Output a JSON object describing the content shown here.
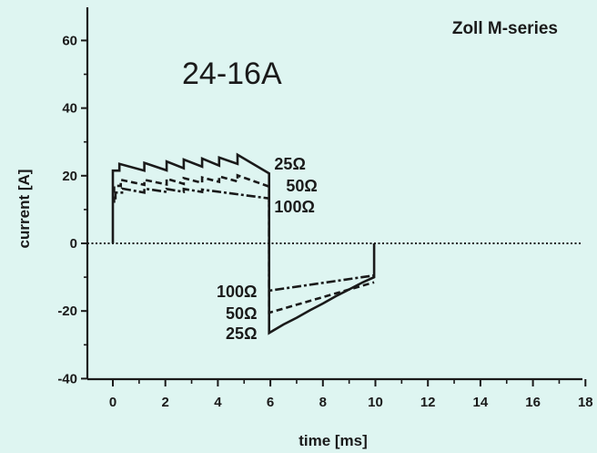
{
  "chart_data": {
    "type": "line",
    "title": "Zoll M-series",
    "subtitle": "24-16A",
    "xlabel": "time [ms]",
    "ylabel": "current [A]",
    "xlim": [
      -1,
      18
    ],
    "ylim": [
      -40,
      70
    ],
    "x_ticks": [
      0,
      2,
      4,
      6,
      8,
      10,
      12,
      14,
      16,
      18
    ],
    "y_ticks": [
      -40,
      -20,
      0,
      20,
      40,
      60
    ],
    "grid": false,
    "zero_line": {
      "y": 0,
      "style": "dotted"
    },
    "series": [
      {
        "name": "25Ω",
        "style": "solid",
        "points": [
          [
            0,
            0
          ],
          [
            0,
            21.5
          ],
          [
            0.25,
            21.5
          ],
          [
            0.25,
            23.5
          ],
          [
            1.2,
            21.5
          ],
          [
            1.2,
            23.8
          ],
          [
            2.05,
            21.6
          ],
          [
            2.05,
            24.2
          ],
          [
            2.7,
            22.2
          ],
          [
            2.7,
            24.8
          ],
          [
            3.4,
            22.7
          ],
          [
            3.4,
            25.1
          ],
          [
            4.05,
            23
          ],
          [
            4.05,
            25.4
          ],
          [
            4.75,
            23.5
          ],
          [
            4.75,
            26.2
          ],
          [
            5.95,
            20.7
          ],
          [
            5.95,
            -26.5
          ],
          [
            6.5,
            -24
          ],
          [
            7.0,
            -22
          ],
          [
            7.5,
            -19.8
          ],
          [
            8.0,
            -17.8
          ],
          [
            8.5,
            -15.6
          ],
          [
            9.0,
            -13.6
          ],
          [
            9.5,
            -11.6
          ],
          [
            9.95,
            -10
          ],
          [
            9.95,
            0
          ]
        ]
      },
      {
        "name": "50Ω",
        "style": "dashed",
        "points": [
          [
            0.05,
            12
          ],
          [
            0.05,
            17
          ],
          [
            0.3,
            17
          ],
          [
            0.3,
            18.8
          ],
          [
            1.2,
            17.3
          ],
          [
            1.2,
            18.8
          ],
          [
            2.05,
            17.4
          ],
          [
            2.05,
            19.1
          ],
          [
            2.7,
            17.6
          ],
          [
            2.7,
            19.3
          ],
          [
            3.4,
            17.9
          ],
          [
            3.4,
            19.5
          ],
          [
            4.05,
            18.2
          ],
          [
            4.05,
            19.8
          ],
          [
            4.75,
            18.3
          ],
          [
            4.75,
            20.1
          ],
          [
            5.95,
            16.8
          ],
          [
            5.95,
            -20.5
          ],
          [
            9.95,
            -11.5
          ]
        ]
      },
      {
        "name": "100Ω",
        "style": "dash-dot",
        "points": [
          [
            0.1,
            13
          ],
          [
            0.1,
            15
          ],
          [
            0.35,
            15
          ],
          [
            0.35,
            16.2
          ],
          [
            1.2,
            15
          ],
          [
            1.2,
            16.2
          ],
          [
            2.05,
            15.2
          ],
          [
            2.05,
            16.1
          ],
          [
            2.7,
            15.2
          ],
          [
            2.7,
            16.1
          ],
          [
            3.4,
            15.2
          ],
          [
            3.4,
            15.9
          ],
          [
            5.95,
            13.3
          ],
          [
            5.95,
            -14
          ],
          [
            9.95,
            -9.5
          ]
        ]
      }
    ],
    "labels": [
      {
        "text": "25Ω",
        "x": 6.15,
        "y": 23.5
      },
      {
        "text": "50Ω",
        "x": 6.6,
        "y": 17
      },
      {
        "text": "100Ω",
        "x": 6.15,
        "y": 10.8
      },
      {
        "text": "100Ω",
        "x": 3.95,
        "y": -14.3
      },
      {
        "text": "50Ω",
        "x": 4.3,
        "y": -20.7
      },
      {
        "text": "25Ω",
        "x": 4.3,
        "y": -26.7
      }
    ]
  }
}
